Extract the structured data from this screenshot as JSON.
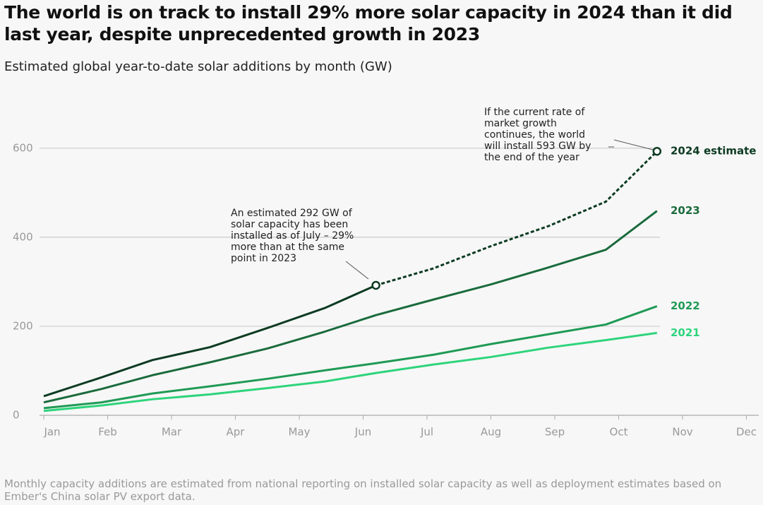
{
  "chart_data": {
    "type": "line",
    "title": "The world is on track to install 29% more solar capacity in 2024 than it did last year, despite unprecedented growth in 2023",
    "subtitle": "Estimated global year-to-date solar additions by month (GW)",
    "footnote": "Monthly capacity additions are estimated from national reporting on installed solar capacity as well as deployment estimates based on Ember's China solar PV export data.",
    "x": [
      0,
      0.9,
      1.7,
      2.6,
      3.5,
      4.4,
      5.2,
      6.1,
      7.0,
      7.9,
      8.8,
      9.6
    ],
    "xlim": [
      0,
      11
    ],
    "xticks": [
      {
        "value": 0,
        "label": "Jan"
      },
      {
        "value": 1,
        "label": "Feb"
      },
      {
        "value": 2,
        "label": "Mar"
      },
      {
        "value": 3,
        "label": "Apr"
      },
      {
        "value": 4,
        "label": "May"
      },
      {
        "value": 5,
        "label": "Jun"
      },
      {
        "value": 6,
        "label": "Jul"
      },
      {
        "value": 7,
        "label": "Aug"
      },
      {
        "value": 8,
        "label": "Sep"
      },
      {
        "value": 9,
        "label": "Oct"
      },
      {
        "value": 10,
        "label": "Nov"
      },
      {
        "value": 11,
        "label": "Dec"
      }
    ],
    "ylim": [
      0,
      660
    ],
    "yticks": [
      0,
      200,
      400,
      600
    ],
    "grid": true,
    "dashed_from_x": 5.2,
    "series": [
      {
        "name": "2024 estimate",
        "color": "#0d3b22",
        "values": [
          43,
          85,
          124,
          153,
          196,
          241,
          292,
          330,
          380,
          425,
          480,
          593
        ]
      },
      {
        "name": "2023",
        "color": "#1a6b3c",
        "values": [
          29,
          59,
          90,
          119,
          150,
          188,
          225,
          260,
          294,
          332,
          372,
          459
        ]
      },
      {
        "name": "2022",
        "color": "#1f9a55",
        "values": [
          16,
          29,
          49,
          65,
          82,
          101,
          117,
          136,
          160,
          182,
          204,
          245
        ]
      },
      {
        "name": "2021",
        "color": "#2ed47c",
        "values": [
          10,
          22,
          36,
          47,
          61,
          76,
          95,
          114,
          131,
          152,
          169,
          185
        ]
      }
    ],
    "annotations": [
      {
        "lines": [
          "An estimated 292 GW of",
          "solar capacity has been",
          "installed as of July – 29%",
          "more than at the same",
          "point in 2023"
        ]
      },
      {
        "lines": [
          "If the current rate of",
          "market growth",
          "continues, the world",
          "will install 593 GW by",
          "the end of the year"
        ]
      }
    ]
  }
}
